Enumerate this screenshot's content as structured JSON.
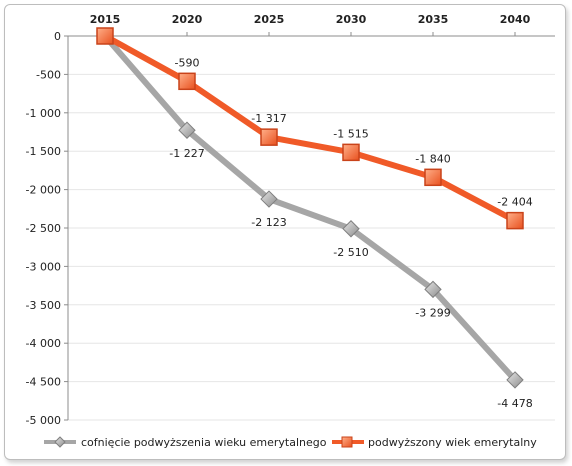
{
  "chart_data": {
    "type": "line",
    "x": [
      "2015",
      "2020",
      "2025",
      "2030",
      "2035",
      "2040"
    ],
    "ylim": [
      -5000,
      0
    ],
    "yticks": [
      0,
      -500,
      -1000,
      -1500,
      -2000,
      -2500,
      -3000,
      -3500,
      -4000,
      -4500,
      -5000
    ],
    "ytick_labels": [
      "0",
      "-500",
      "-1 000",
      "-1 500",
      "-2 000",
      "-2 500",
      "-3 000",
      "-3 500",
      "-4 000",
      "-4 500",
      "-5 000"
    ],
    "grid": true,
    "legend_position": "bottom",
    "series": [
      {
        "name": "cofnięcie podwyższenia wieku emerytalnego",
        "color": "#a6a6a6",
        "marker": "diamond",
        "values": [
          0,
          -1227,
          -2123,
          -2510,
          -3299,
          -4478
        ],
        "labels": [
          "",
          "-1 227",
          "-2 123",
          "-2 510",
          "-3 299",
          "-4 478"
        ]
      },
      {
        "name": "podwyższony wiek emerytalny",
        "color": "#f05a28",
        "marker": "square",
        "values": [
          0,
          -590,
          -1317,
          -1515,
          -1840,
          -2404
        ],
        "labels": [
          "",
          "-590",
          "-1 317",
          "-1 515",
          "-1 840",
          "-2 404"
        ]
      }
    ]
  }
}
